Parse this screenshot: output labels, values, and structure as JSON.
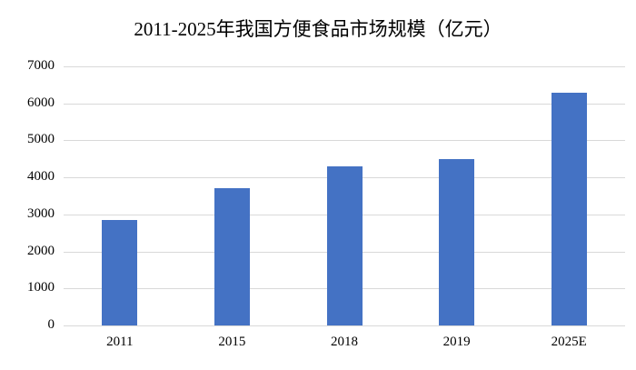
{
  "chart_data": {
    "type": "bar",
    "title": "2011-2025年我国方便食品市场规模（亿元）",
    "categories": [
      "2011",
      "2015",
      "2018",
      "2019",
      "2025E"
    ],
    "values": [
      2850,
      3700,
      4300,
      4500,
      6300
    ],
    "xlabel": "",
    "ylabel": "",
    "ylim": [
      0,
      7000
    ],
    "yticks": [
      0,
      1000,
      2000,
      3000,
      4000,
      5000,
      6000,
      7000
    ],
    "grid": true,
    "legend_position": "none",
    "bar_color": "#4472C4",
    "gridline_color": "#D9D9D9",
    "background_color": "#FFFFFF"
  }
}
